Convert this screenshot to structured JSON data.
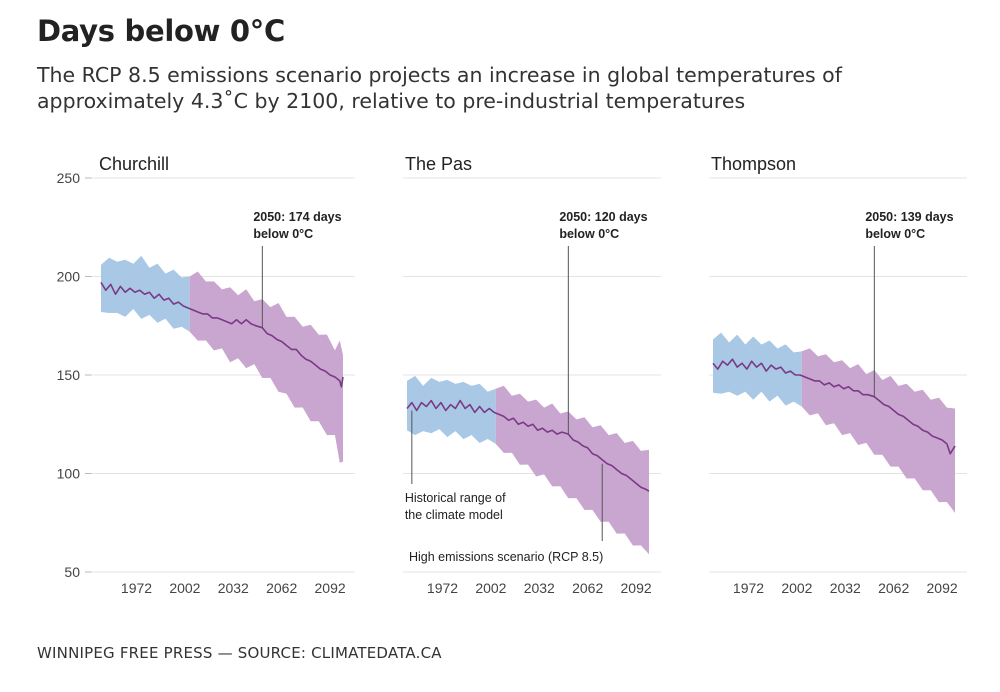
{
  "title": "Days below 0°C",
  "subtitle": "The RCP 8.5 emissions scenario projects an increase in global temperatures of approximately 4.3˚C by 2100, relative to pre-industrial temperatures",
  "footer": "WINNIPEG FREE PRESS — SOURCE: CLIMATEDATA.CA",
  "colors": {
    "historical_band": "#a9c8e6",
    "projected_band": "#c9a6cf",
    "median_line": "#7a3a86",
    "grid": "#e3e3e3",
    "annotation_line": "#555555"
  },
  "chart_data": {
    "type": "line",
    "ylim": [
      50,
      250
    ],
    "yticks": [
      50,
      100,
      150,
      200,
      250
    ],
    "xlim": [
      1950,
      2100
    ],
    "xticks": [
      1972,
      2002,
      2032,
      2062,
      2092
    ],
    "historical_until": 2005,
    "panels": [
      {
        "name": "Churchill",
        "annotation": {
          "year": 2050,
          "line1": "2050: 174 days",
          "line2": "below 0°C"
        },
        "median": [
          [
            1950,
            197
          ],
          [
            1953,
            193
          ],
          [
            1956,
            196
          ],
          [
            1959,
            191
          ],
          [
            1962,
            195
          ],
          [
            1965,
            192
          ],
          [
            1968,
            194
          ],
          [
            1971,
            192
          ],
          [
            1974,
            193
          ],
          [
            1977,
            191
          ],
          [
            1980,
            192
          ],
          [
            1983,
            189
          ],
          [
            1986,
            191
          ],
          [
            1989,
            188
          ],
          [
            1992,
            189
          ],
          [
            1995,
            186
          ],
          [
            1998,
            187
          ],
          [
            2001,
            185
          ],
          [
            2004,
            184
          ],
          [
            2007,
            183
          ],
          [
            2010,
            182
          ],
          [
            2013,
            181
          ],
          [
            2016,
            181
          ],
          [
            2019,
            179
          ],
          [
            2022,
            179
          ],
          [
            2025,
            178
          ],
          [
            2028,
            177
          ],
          [
            2031,
            176
          ],
          [
            2034,
            178
          ],
          [
            2037,
            176
          ],
          [
            2040,
            178
          ],
          [
            2043,
            176
          ],
          [
            2046,
            175
          ],
          [
            2050,
            174
          ],
          [
            2053,
            171
          ],
          [
            2056,
            170
          ],
          [
            2059,
            168
          ],
          [
            2062,
            167
          ],
          [
            2065,
            165
          ],
          [
            2068,
            163
          ],
          [
            2071,
            163
          ],
          [
            2074,
            160
          ],
          [
            2077,
            158
          ],
          [
            2080,
            157
          ],
          [
            2083,
            155
          ],
          [
            2086,
            153
          ],
          [
            2089,
            152
          ],
          [
            2092,
            150
          ],
          [
            2095,
            149
          ],
          [
            2098,
            147
          ],
          [
            2099,
            144
          ],
          [
            2100,
            149
          ]
        ],
        "band": [
          [
            1950,
            182,
            206
          ],
          [
            1955,
            183,
            208
          ],
          [
            1960,
            180,
            209
          ],
          [
            1965,
            181,
            207
          ],
          [
            1970,
            182,
            208
          ],
          [
            1975,
            180,
            209
          ],
          [
            1980,
            179,
            206
          ],
          [
            1985,
            178,
            205
          ],
          [
            1990,
            177,
            203
          ],
          [
            1995,
            175,
            202
          ],
          [
            2000,
            173,
            201
          ],
          [
            2005,
            172,
            200
          ],
          [
            2010,
            169,
            201
          ],
          [
            2015,
            166,
            199
          ],
          [
            2020,
            164,
            196
          ],
          [
            2025,
            162,
            195
          ],
          [
            2030,
            158,
            193
          ],
          [
            2035,
            157,
            192
          ],
          [
            2040,
            155,
            192
          ],
          [
            2045,
            154,
            189
          ],
          [
            2050,
            150,
            187
          ],
          [
            2055,
            147,
            186
          ],
          [
            2060,
            143,
            185
          ],
          [
            2065,
            139,
            181
          ],
          [
            2070,
            135,
            178
          ],
          [
            2075,
            132,
            176
          ],
          [
            2080,
            128,
            174
          ],
          [
            2085,
            125,
            172
          ],
          [
            2090,
            121,
            169
          ],
          [
            2095,
            118,
            164
          ],
          [
            2098,
            107,
            166
          ],
          [
            2100,
            106,
            160
          ]
        ]
      },
      {
        "name": "The Pas",
        "annotation": {
          "year": 2050,
          "line1": "2050: 120 days",
          "line2": "below 0°C"
        },
        "hist_label": [
          "Historical range of",
          "the climate model"
        ],
        "proj_label": "High emissions scenario (RCP 8.5)",
        "median": [
          [
            1950,
            133
          ],
          [
            1953,
            136
          ],
          [
            1956,
            132
          ],
          [
            1959,
            136
          ],
          [
            1962,
            134
          ],
          [
            1965,
            137
          ],
          [
            1968,
            133
          ],
          [
            1971,
            136
          ],
          [
            1974,
            132
          ],
          [
            1977,
            135
          ],
          [
            1980,
            133
          ],
          [
            1983,
            137
          ],
          [
            1986,
            133
          ],
          [
            1989,
            135
          ],
          [
            1992,
            131
          ],
          [
            1995,
            134
          ],
          [
            1998,
            131
          ],
          [
            2001,
            133
          ],
          [
            2004,
            131
          ],
          [
            2007,
            130
          ],
          [
            2010,
            129
          ],
          [
            2013,
            127
          ],
          [
            2016,
            128
          ],
          [
            2019,
            125
          ],
          [
            2022,
            126
          ],
          [
            2025,
            124
          ],
          [
            2028,
            125
          ],
          [
            2031,
            122
          ],
          [
            2034,
            123
          ],
          [
            2037,
            121
          ],
          [
            2040,
            122
          ],
          [
            2043,
            120
          ],
          [
            2046,
            121
          ],
          [
            2050,
            120
          ],
          [
            2053,
            117
          ],
          [
            2056,
            116
          ],
          [
            2059,
            114
          ],
          [
            2062,
            113
          ],
          [
            2065,
            110
          ],
          [
            2068,
            109
          ],
          [
            2071,
            107
          ],
          [
            2074,
            105
          ],
          [
            2077,
            104
          ],
          [
            2080,
            102
          ],
          [
            2083,
            100
          ],
          [
            2086,
            99
          ],
          [
            2089,
            97
          ],
          [
            2092,
            95
          ],
          [
            2095,
            93
          ],
          [
            2098,
            92
          ],
          [
            2100,
            91
          ]
        ],
        "band": [
          [
            1950,
            122,
            147
          ],
          [
            1955,
            121,
            148
          ],
          [
            1960,
            120,
            146
          ],
          [
            1965,
            122,
            147
          ],
          [
            1970,
            121,
            148
          ],
          [
            1975,
            120,
            146
          ],
          [
            1980,
            120,
            147
          ],
          [
            1985,
            119,
            145
          ],
          [
            1990,
            118,
            146
          ],
          [
            1995,
            117,
            144
          ],
          [
            2000,
            116,
            143
          ],
          [
            2005,
            115,
            143
          ],
          [
            2010,
            112,
            143
          ],
          [
            2015,
            109,
            141
          ],
          [
            2020,
            106,
            139
          ],
          [
            2025,
            103,
            138
          ],
          [
            2030,
            100,
            136
          ],
          [
            2035,
            98,
            135
          ],
          [
            2040,
            95,
            134
          ],
          [
            2045,
            92,
            132
          ],
          [
            2050,
            89,
            130
          ],
          [
            2055,
            86,
            129
          ],
          [
            2060,
            83,
            127
          ],
          [
            2065,
            80,
            125
          ],
          [
            2070,
            77,
            123
          ],
          [
            2075,
            74,
            121
          ],
          [
            2080,
            71,
            119
          ],
          [
            2085,
            68,
            117
          ],
          [
            2090,
            65,
            115
          ],
          [
            2095,
            62,
            113
          ],
          [
            2100,
            59,
            112
          ]
        ]
      },
      {
        "name": "Thompson",
        "annotation": {
          "year": 2050,
          "line1": "2050: 139 days",
          "line2": "below 0°C"
        },
        "median": [
          [
            1950,
            156
          ],
          [
            1953,
            153
          ],
          [
            1956,
            157
          ],
          [
            1959,
            155
          ],
          [
            1962,
            158
          ],
          [
            1965,
            154
          ],
          [
            1968,
            156
          ],
          [
            1971,
            153
          ],
          [
            1974,
            157
          ],
          [
            1977,
            154
          ],
          [
            1980,
            156
          ],
          [
            1983,
            152
          ],
          [
            1986,
            155
          ],
          [
            1989,
            153
          ],
          [
            1992,
            154
          ],
          [
            1995,
            151
          ],
          [
            1998,
            152
          ],
          [
            2001,
            150
          ],
          [
            2004,
            150
          ],
          [
            2007,
            149
          ],
          [
            2010,
            148
          ],
          [
            2013,
            147
          ],
          [
            2016,
            147
          ],
          [
            2019,
            145
          ],
          [
            2022,
            146
          ],
          [
            2025,
            144
          ],
          [
            2028,
            145
          ],
          [
            2031,
            143
          ],
          [
            2034,
            144
          ],
          [
            2037,
            142
          ],
          [
            2040,
            142
          ],
          [
            2043,
            140
          ],
          [
            2046,
            140
          ],
          [
            2050,
            139
          ],
          [
            2053,
            137
          ],
          [
            2056,
            135
          ],
          [
            2059,
            134
          ],
          [
            2062,
            132
          ],
          [
            2065,
            130
          ],
          [
            2068,
            129
          ],
          [
            2071,
            127
          ],
          [
            2074,
            125
          ],
          [
            2077,
            124
          ],
          [
            2080,
            122
          ],
          [
            2083,
            121
          ],
          [
            2086,
            119
          ],
          [
            2089,
            118
          ],
          [
            2092,
            117
          ],
          [
            2095,
            115
          ],
          [
            2097,
            110
          ],
          [
            2100,
            114
          ]
        ],
        "band": [
          [
            1950,
            141,
            168
          ],
          [
            1955,
            142,
            170
          ],
          [
            1960,
            140,
            168
          ],
          [
            1965,
            141,
            169
          ],
          [
            1970,
            140,
            167
          ],
          [
            1975,
            139,
            168
          ],
          [
            1980,
            140,
            167
          ],
          [
            1985,
            138,
            166
          ],
          [
            1990,
            138,
            165
          ],
          [
            1995,
            136,
            164
          ],
          [
            2000,
            135,
            163
          ],
          [
            2005,
            134,
            162
          ],
          [
            2010,
            131,
            162
          ],
          [
            2015,
            129,
            161
          ],
          [
            2020,
            126,
            159
          ],
          [
            2025,
            124,
            158
          ],
          [
            2030,
            121,
            156
          ],
          [
            2035,
            119,
            155
          ],
          [
            2040,
            116,
            154
          ],
          [
            2045,
            114,
            152
          ],
          [
            2050,
            111,
            151
          ],
          [
            2055,
            108,
            149
          ],
          [
            2060,
            105,
            148
          ],
          [
            2065,
            102,
            146
          ],
          [
            2070,
            99,
            144
          ],
          [
            2075,
            96,
            143
          ],
          [
            2080,
            93,
            141
          ],
          [
            2085,
            90,
            139
          ],
          [
            2090,
            87,
            137
          ],
          [
            2095,
            84,
            135
          ],
          [
            2100,
            80,
            133
          ]
        ]
      }
    ]
  }
}
